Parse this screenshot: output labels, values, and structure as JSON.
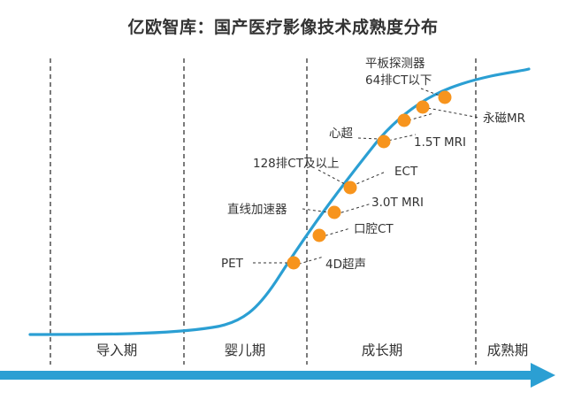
{
  "title": "亿欧智库：国产医疗影像技术成熟度分布",
  "colors": {
    "curve": "#2b9fd3",
    "dot": "#f7941d",
    "arrow": "#2b9fd3",
    "guide": "#333333",
    "text": "#333333"
  },
  "phases": [
    "导入期",
    "婴儿期",
    "成长期",
    "成熟期"
  ],
  "technologies": [
    "平板探测器",
    "64排CT以下",
    "永磁MR",
    "心超",
    "1.5T MRI",
    "128排CT及以上",
    "ECT",
    "3.0T MRI",
    "直线加速器",
    "口腔CT",
    "PET",
    "4D超声"
  ]
}
